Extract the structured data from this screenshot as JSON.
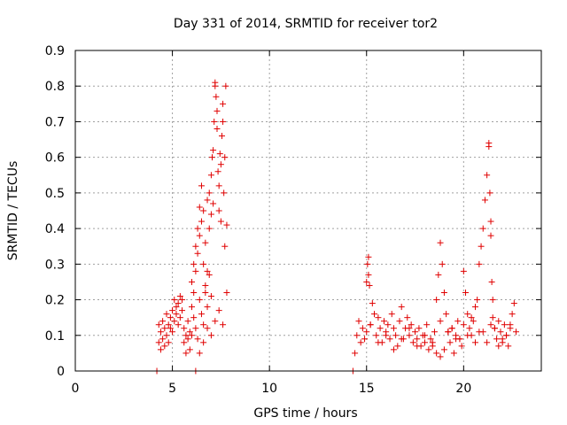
{
  "chart_data": {
    "type": "scatter",
    "title": "Day 331 of 2014, SRMTID for receiver tor2",
    "xlabel": "GPS time / hours",
    "ylabel": "SRMTID / TECUs",
    "xlim": [
      0,
      24
    ],
    "ylim": [
      0,
      0.9
    ],
    "xticks": [
      0,
      5,
      10,
      15,
      20
    ],
    "xtick_labels": [
      "0",
      "5",
      "10",
      "15",
      "20"
    ],
    "yticks": [
      0,
      0.1,
      0.2,
      0.3,
      0.4,
      0.5,
      0.6,
      0.7,
      0.8,
      0.9
    ],
    "ytick_labels": [
      "0",
      "0.1",
      "0.2",
      "0.3",
      "0.4",
      "0.5",
      "0.6",
      "0.7",
      "0.8",
      "0.9"
    ],
    "grid": true,
    "marker": "+",
    "marker_color": "#e00000",
    "series": [
      {
        "name": "SRMTID",
        "x": [
          4.2,
          4.3,
          4.3,
          4.4,
          4.4,
          4.5,
          4.5,
          4.6,
          4.6,
          4.7,
          4.7,
          4.8,
          4.8,
          4.9,
          4.9,
          5.0,
          5.0,
          5.1,
          5.1,
          5.2,
          5.2,
          5.3,
          5.3,
          5.4,
          5.4,
          5.5,
          5.5,
          5.6,
          5.6,
          5.7,
          5.7,
          5.8,
          5.8,
          5.9,
          5.9,
          6.0,
          6.0,
          6.1,
          6.1,
          6.2,
          6.2,
          6.3,
          6.3,
          6.4,
          6.4,
          6.5,
          6.5,
          6.6,
          6.6,
          6.7,
          6.7,
          6.8,
          6.8,
          6.9,
          6.9,
          7.0,
          7.0,
          7.05,
          7.1,
          7.1,
          7.15,
          7.2,
          7.2,
          7.25,
          7.3,
          7.3,
          7.35,
          7.4,
          7.4,
          7.45,
          7.5,
          7.5,
          7.55,
          7.6,
          7.6,
          7.65,
          7.7,
          7.7,
          7.75,
          7.8,
          7.8,
          6.0,
          6.1,
          6.2,
          6.3,
          6.4,
          6.5,
          6.6,
          6.7,
          6.8,
          6.9,
          7.0,
          6.2,
          6.4,
          6.6,
          6.8,
          7.0,
          7.2,
          7.4,
          7.6,
          14.3,
          14.4,
          14.5,
          14.6,
          14.7,
          14.8,
          14.9,
          15.0,
          15.0,
          15.05,
          15.1,
          15.1,
          15.15,
          15.2,
          15.3,
          15.4,
          15.5,
          15.6,
          15.7,
          15.8,
          15.9,
          16.0,
          16.1,
          16.2,
          16.3,
          16.4,
          16.5,
          16.6,
          16.7,
          16.8,
          16.9,
          17.0,
          17.1,
          17.2,
          17.3,
          17.4,
          17.5,
          17.6,
          17.7,
          17.8,
          17.9,
          18.0,
          18.1,
          18.2,
          18.3,
          18.4,
          18.5,
          18.6,
          18.7,
          18.8,
          18.9,
          19.0,
          19.1,
          19.2,
          19.3,
          19.4,
          19.5,
          19.6,
          19.7,
          19.8,
          19.9,
          20.0,
          20.1,
          20.2,
          20.3,
          20.4,
          20.5,
          20.6,
          20.7,
          20.8,
          20.9,
          21.0,
          21.1,
          21.2,
          21.3,
          21.3,
          21.35,
          21.4,
          21.4,
          21.45,
          21.5,
          21.5,
          21.6,
          21.7,
          21.8,
          21.9,
          22.0,
          22.1,
          22.2,
          22.3,
          22.4,
          22.5,
          22.6,
          22.7,
          15.2,
          15.6,
          16.0,
          16.4,
          16.8,
          17.2,
          17.6,
          18.0,
          18.4,
          18.8,
          19.2,
          19.6,
          20.0,
          20.4,
          20.8,
          21.2,
          21.6,
          22.0,
          22.4,
          18.6,
          18.8,
          19.0,
          19.4,
          19.8,
          20.2,
          20.6,
          21.0,
          21.4,
          21.8,
          22.2
        ],
        "y": [
          0.0,
          0.08,
          0.13,
          0.06,
          0.11,
          0.14,
          0.09,
          0.12,
          0.07,
          0.16,
          0.1,
          0.13,
          0.08,
          0.12,
          0.15,
          0.11,
          0.17,
          0.14,
          0.2,
          0.16,
          0.18,
          0.13,
          0.19,
          0.15,
          0.21,
          0.17,
          0.2,
          0.12,
          0.08,
          0.1,
          0.05,
          0.14,
          0.09,
          0.11,
          0.06,
          0.18,
          0.25,
          0.3,
          0.22,
          0.35,
          0.28,
          0.4,
          0.33,
          0.46,
          0.38,
          0.52,
          0.42,
          0.3,
          0.45,
          0.22,
          0.36,
          0.48,
          0.28,
          0.4,
          0.5,
          0.44,
          0.55,
          0.6,
          0.62,
          0.47,
          0.7,
          0.81,
          0.8,
          0.77,
          0.73,
          0.68,
          0.56,
          0.52,
          0.45,
          0.61,
          0.58,
          0.42,
          0.66,
          0.75,
          0.7,
          0.5,
          0.6,
          0.35,
          0.8,
          0.41,
          0.22,
          0.1,
          0.15,
          0.12,
          0.09,
          0.2,
          0.16,
          0.13,
          0.24,
          0.18,
          0.27,
          0.21,
          0.0,
          0.05,
          0.08,
          0.12,
          0.1,
          0.14,
          0.17,
          0.13,
          0.0,
          0.05,
          0.1,
          0.14,
          0.08,
          0.12,
          0.09,
          0.11,
          0.25,
          0.3,
          0.32,
          0.27,
          0.24,
          0.13,
          0.19,
          0.16,
          0.1,
          0.15,
          0.12,
          0.08,
          0.14,
          0.11,
          0.13,
          0.09,
          0.16,
          0.12,
          0.1,
          0.07,
          0.14,
          0.18,
          0.09,
          0.12,
          0.15,
          0.1,
          0.13,
          0.08,
          0.11,
          0.09,
          0.12,
          0.07,
          0.1,
          0.08,
          0.13,
          0.06,
          0.09,
          0.07,
          0.11,
          0.2,
          0.27,
          0.36,
          0.3,
          0.22,
          0.16,
          0.11,
          0.08,
          0.12,
          0.05,
          0.1,
          0.14,
          0.09,
          0.07,
          0.28,
          0.22,
          0.16,
          0.12,
          0.1,
          0.14,
          0.18,
          0.2,
          0.3,
          0.35,
          0.4,
          0.48,
          0.55,
          0.64,
          0.63,
          0.5,
          0.42,
          0.38,
          0.25,
          0.2,
          0.15,
          0.12,
          0.09,
          0.14,
          0.11,
          0.08,
          0.13,
          0.1,
          0.07,
          0.12,
          0.16,
          0.19,
          0.11,
          0.13,
          0.08,
          0.1,
          0.06,
          0.09,
          0.12,
          0.07,
          0.1,
          0.08,
          0.14,
          0.11,
          0.09,
          0.13,
          0.15,
          0.11,
          0.08,
          0.12,
          0.09,
          0.13,
          0.05,
          0.04,
          0.06,
          0.12,
          0.09,
          0.1,
          0.08,
          0.11,
          0.13,
          0.07,
          0.1
        ]
      }
    ]
  }
}
